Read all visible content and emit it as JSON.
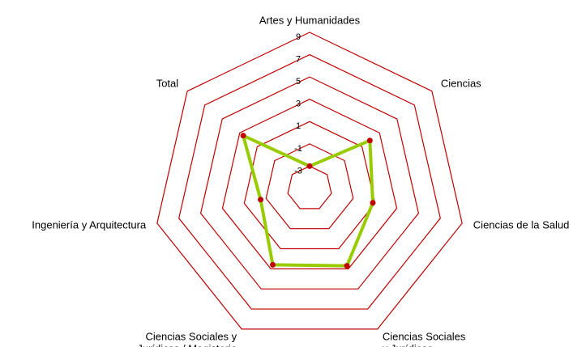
{
  "chart_data": {
    "type": "radar",
    "categories": [
      "Artes y Humanidades",
      "Ciencias",
      "Ciencias de la Salud",
      "Ciencias Sociales y Jurídicas",
      "Ciencias Sociales y Jurídicas / Magisterio",
      "Ingeniería y Arquitectura",
      "Total"
    ],
    "values": [
      -3,
      1.9,
      0.8,
      2.7,
      2.6,
      -0.5,
      2.6
    ],
    "color": "#99cc00",
    "marker_color": "#c00000",
    "grid_color": "#c00000",
    "ylim": [
      -5,
      9
    ],
    "yticks": [
      -3,
      -1,
      1,
      3,
      5,
      7,
      9
    ],
    "grid": true
  }
}
